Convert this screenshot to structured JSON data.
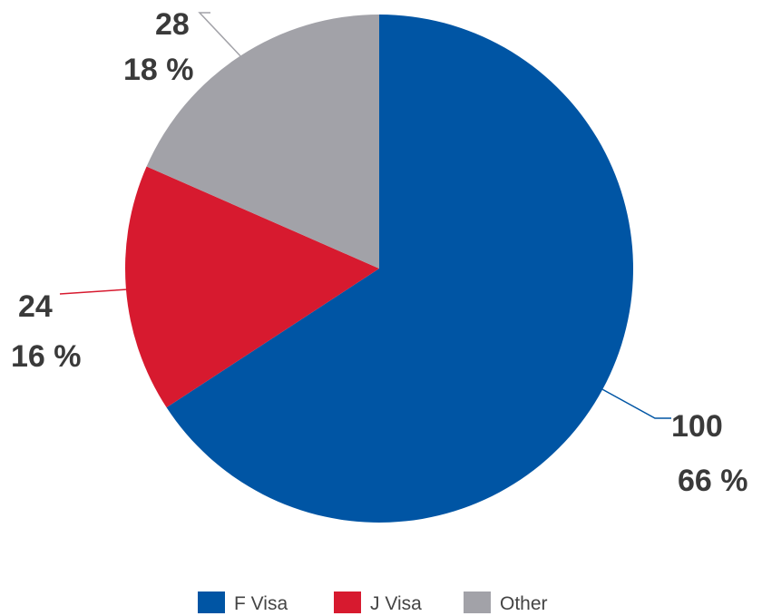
{
  "chart_data": {
    "type": "pie",
    "title": "",
    "slices": [
      {
        "label": "F Visa",
        "value": 100,
        "percent_label": "66 %",
        "color": "#0055A4"
      },
      {
        "label": "J Visa",
        "value": 24,
        "percent_label": "16 %",
        "color": "#D71A2F"
      },
      {
        "label": "Other",
        "value": 28,
        "percent_label": "18 %",
        "color": "#A2A2A8"
      }
    ],
    "start_angle_deg": 0,
    "direction": "clockwise",
    "legend_position": "bottom"
  },
  "colors": {
    "label_text": "#3a3a3a",
    "legend_text": "#444444"
  }
}
